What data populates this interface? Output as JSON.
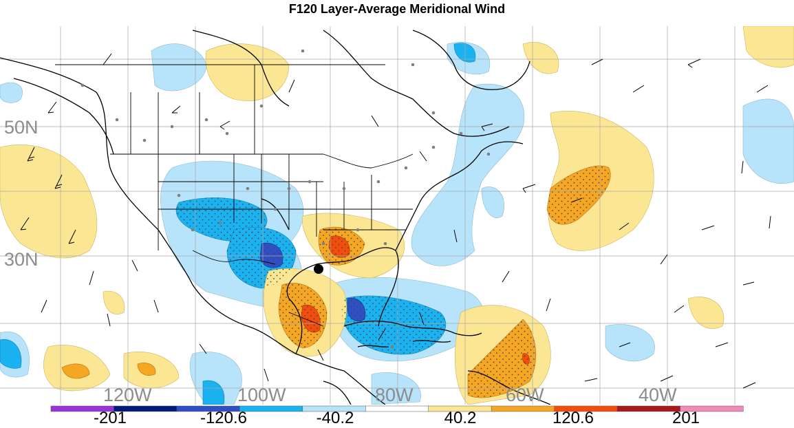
{
  "title": "F120 Layer-Average Meridional Wind",
  "map": {
    "lat_labels": [
      "50N",
      "30N"
    ],
    "lon_labels": [
      "120W",
      "100W",
      "80W",
      "60W",
      "40W"
    ],
    "features": [
      "contour-fill",
      "wind-barbs",
      "station-dots",
      "coastlines",
      "state-borders",
      "country-borders",
      "lat-lon-grid"
    ],
    "marker": "storm-center-dot"
  },
  "colorbar": {
    "labels": [
      "-201",
      "-120.6",
      "-40.2",
      "40.2",
      "120.6",
      "201"
    ],
    "colors": [
      "#9b33d6",
      "#001a7a",
      "#2f4fc4",
      "#1ab2f0",
      "#b7e4fa",
      "#ffffff",
      "#fbe694",
      "#f5a623",
      "#f24d0c",
      "#a51a1a",
      "#f18ab9"
    ]
  }
}
